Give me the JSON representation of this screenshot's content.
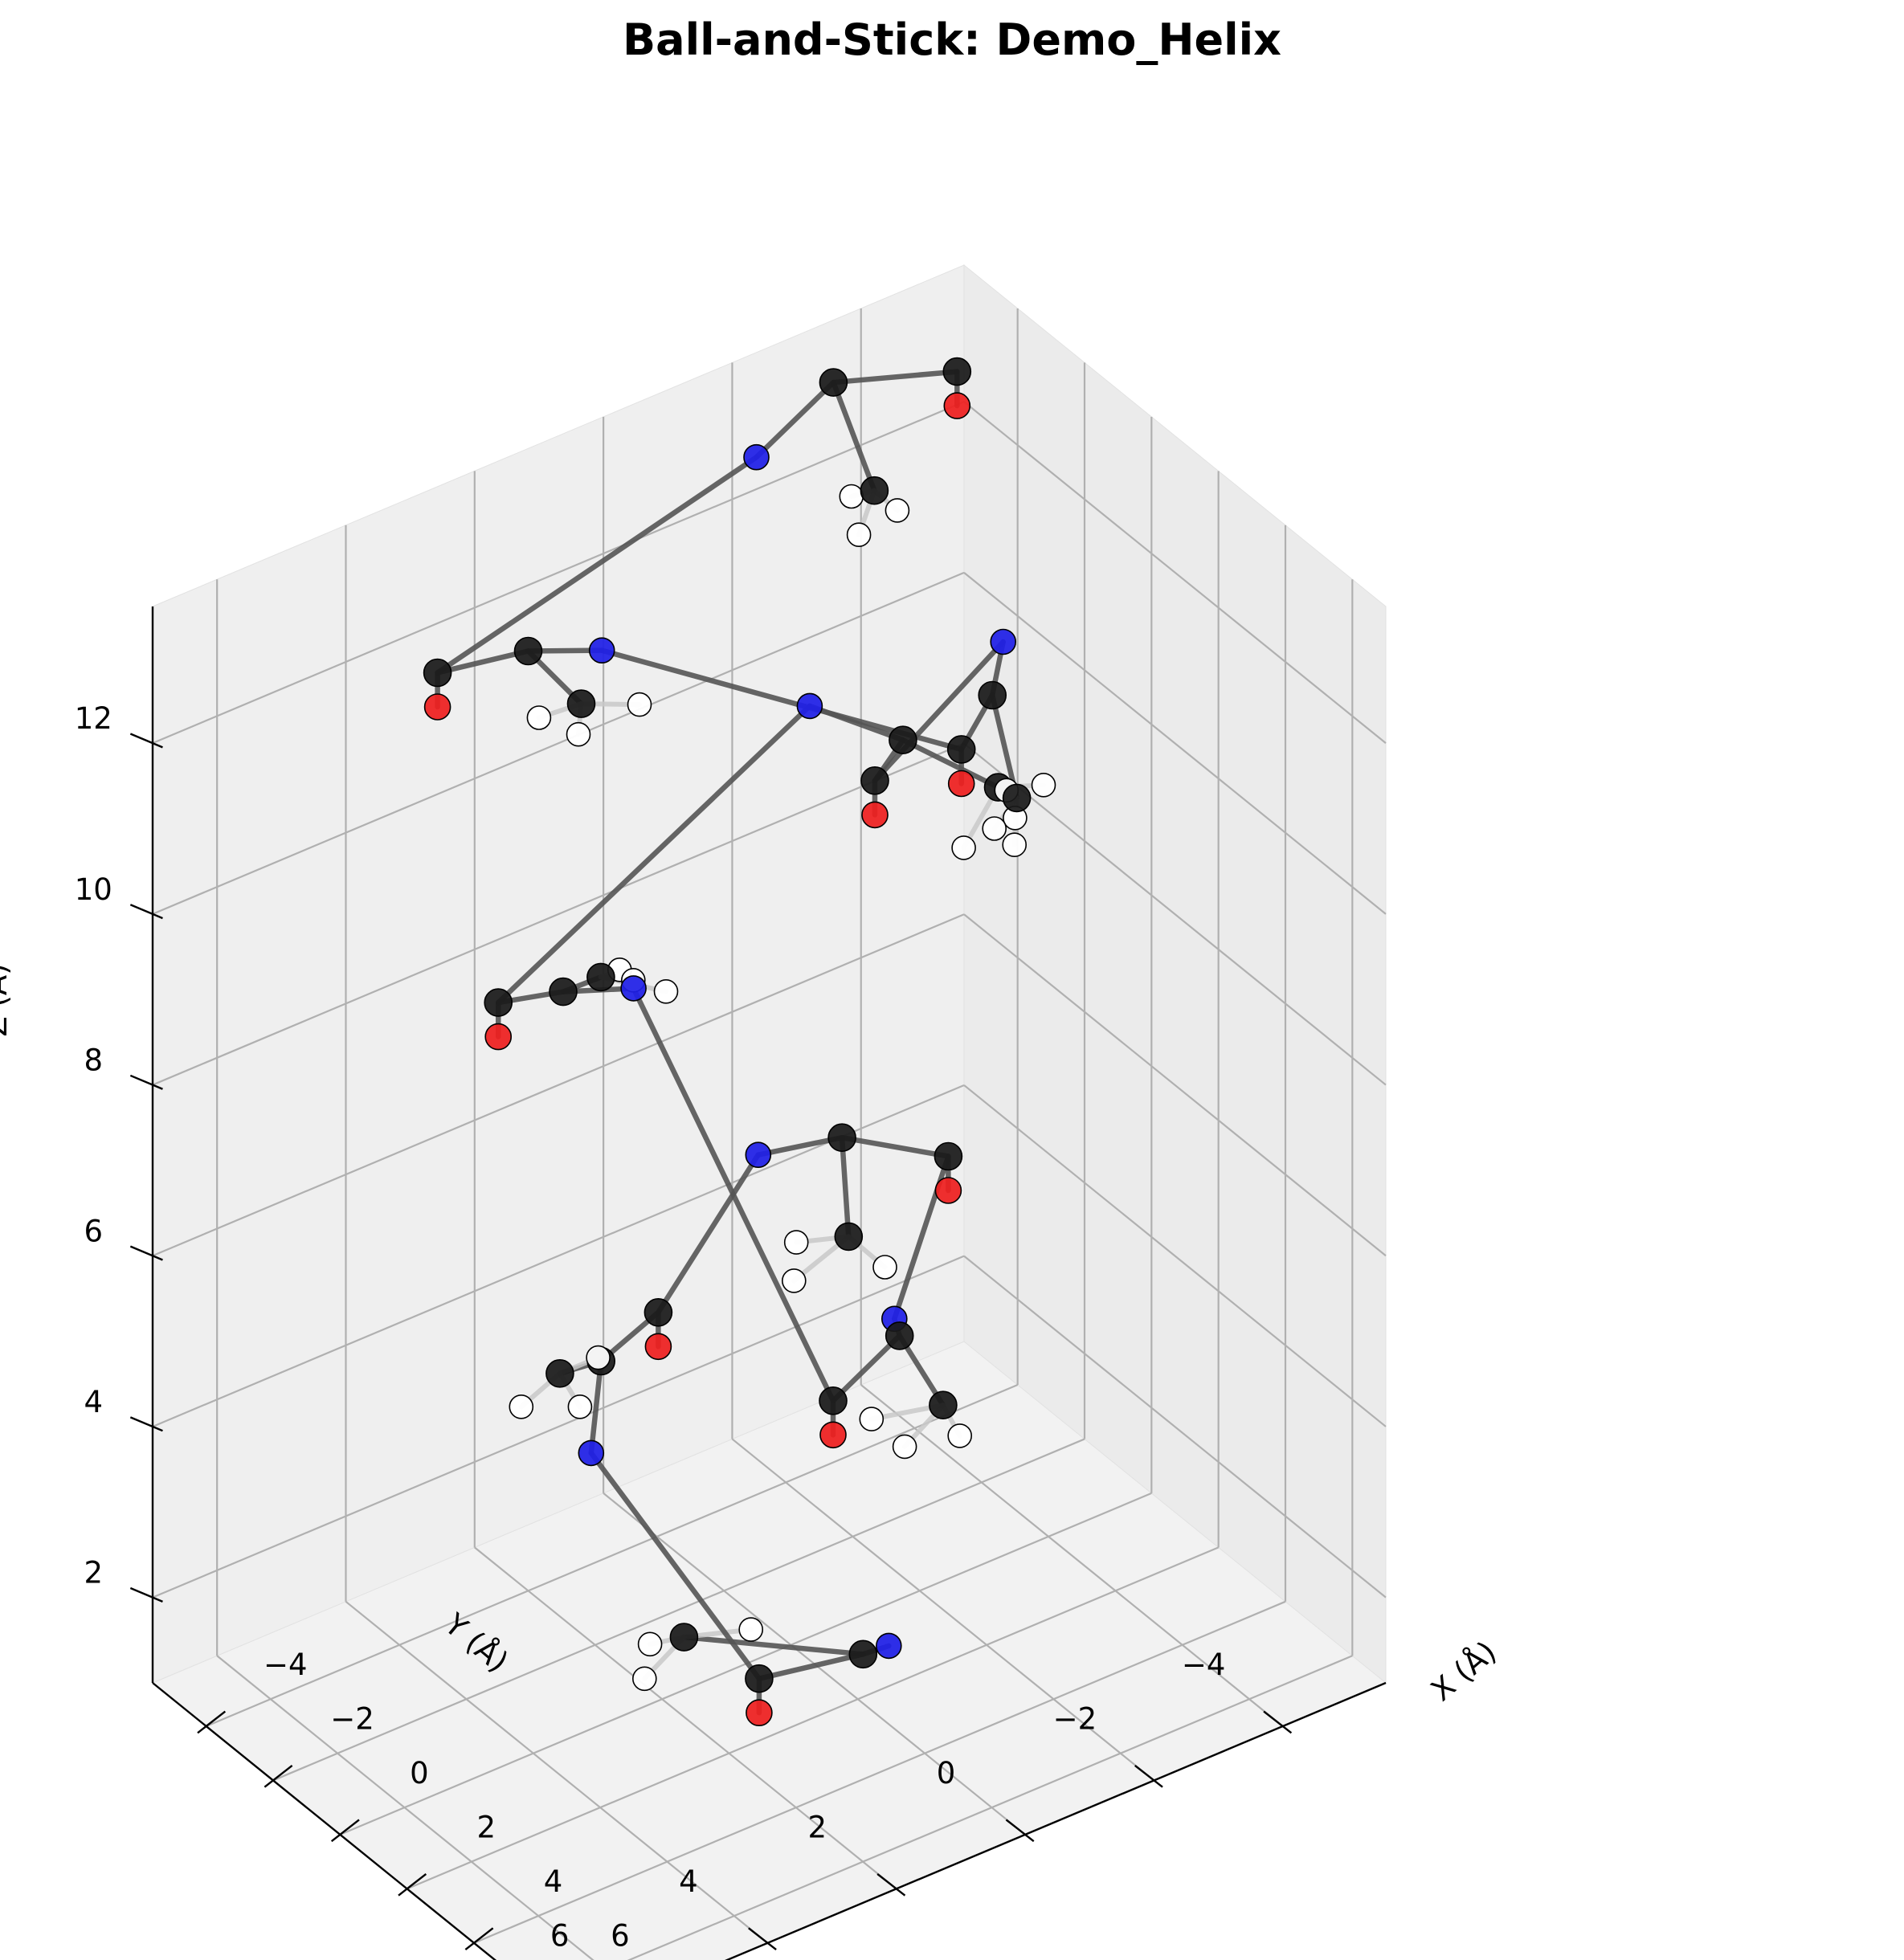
{
  "chart_data": {
    "type": "scatter",
    "subtype": "3d-ball-and-stick",
    "title": "Ball-and-Stick: Demo_Helix",
    "xlabel": "X (Å)",
    "ylabel": "Y (Å)",
    "zlabel": "Z (Å)",
    "xlim": [
      -5.6,
      7.0
    ],
    "ylim": [
      -5.6,
      7.0
    ],
    "zlim": [
      1.0,
      13.6
    ],
    "x_ticks": [
      "−4",
      "−2",
      "0",
      "2",
      "4",
      "6"
    ],
    "y_ticks": [
      "−4",
      "−2",
      "0",
      "2",
      "4",
      "6"
    ],
    "z_ticks": [
      "2",
      "4",
      "6",
      "8",
      "10",
      "12"
    ],
    "grid": true,
    "legend": "none",
    "element_colors": {
      "C": "#1a1a1a",
      "N": "#1f1fe6",
      "O": "#ee1f1f",
      "H": "#ffffff"
    },
    "bond_color": "#555555",
    "atoms": [
      {
        "el": "N",
        "x": 2.06,
        "y": -0.45,
        "z": 1.5
      },
      {
        "el": "C",
        "x": 2.83,
        "y": 0.35,
        "z": 1.9
      },
      {
        "el": "C",
        "x": 2.36,
        "y": 1.72,
        "z": 1.9
      },
      {
        "el": "O",
        "x": 2.36,
        "y": 1.72,
        "z": 1.5
      },
      {
        "el": "C",
        "x": 1.0,
        "y": 2.18,
        "z": 2.1
      },
      {
        "el": "H",
        "x": 0.41,
        "y": 2.4,
        "z": 1.9
      },
      {
        "el": "H",
        "x": 1.4,
        "y": 3.0,
        "z": 2.0
      },
      {
        "el": "H",
        "x": 1.5,
        "y": 1.4,
        "z": 2.1
      },
      {
        "el": "N",
        "x": -1.1,
        "y": 2.53,
        "z": 3.7
      },
      {
        "el": "C",
        "x": -2.4,
        "y": 1.7,
        "z": 4.1
      },
      {
        "el": "C",
        "x": -3.0,
        "y": 0.5,
        "z": 4.1
      },
      {
        "el": "O",
        "x": -3.0,
        "y": 0.5,
        "z": 3.7
      },
      {
        "el": "C",
        "x": -1.9,
        "y": 2.6,
        "z": 4.4
      },
      {
        "el": "H",
        "x": -1.9,
        "y": 3.2,
        "z": 4.2
      },
      {
        "el": "H",
        "x": -1.3,
        "y": 2.6,
        "z": 4.2
      },
      {
        "el": "H",
        "x": -2.1,
        "y": 1.9,
        "z": 4.3
      },
      {
        "el": "N",
        "x": -2.9,
        "y": -1.0,
        "z": 5.5
      },
      {
        "el": "C",
        "x": -1.84,
        "y": -1.75,
        "z": 5.8
      },
      {
        "el": "C",
        "x": -0.3,
        "y": -2.6,
        "z": 5.8
      },
      {
        "el": "O",
        "x": -0.3,
        "y": -2.6,
        "z": 5.4
      },
      {
        "el": "C",
        "x": -0.2,
        "y": -1.0,
        "z": 5.4
      },
      {
        "el": "H",
        "x": 0.5,
        "y": -1.2,
        "z": 5.2
      },
      {
        "el": "H",
        "x": -0.1,
        "y": -0.1,
        "z": 5.2
      },
      {
        "el": "H",
        "x": -0.8,
        "y": -0.5,
        "z": 5.3
      },
      {
        "el": "N",
        "x": 0.4,
        "y": -1.4,
        "z": 4.5
      },
      {
        "el": "C",
        "x": 1.9,
        "y": -0.7,
        "z": 5.0
      },
      {
        "el": "C",
        "x": 2.8,
        "y": 0.8,
        "z": 5.0
      },
      {
        "el": "O",
        "x": 2.8,
        "y": 0.8,
        "z": 4.6
      },
      {
        "el": "C",
        "x": 3.2,
        "y": -0.7,
        "z": 4.6
      },
      {
        "el": "H",
        "x": 3.7,
        "y": -0.7,
        "z": 4.4
      },
      {
        "el": "H",
        "x": 3.4,
        "y": 0.0,
        "z": 4.4
      },
      {
        "el": "H",
        "x": 2.6,
        "y": 0.1,
        "z": 4.5
      },
      {
        "el": "N",
        "x": -2.2,
        "y": 1.3,
        "z": 8.4
      },
      {
        "el": "C",
        "x": -1.8,
        "y": 2.6,
        "z": 8.9
      },
      {
        "el": "C",
        "x": -2.2,
        "y": 3.4,
        "z": 8.9
      },
      {
        "el": "O",
        "x": -2.2,
        "y": 3.4,
        "z": 8.5
      },
      {
        "el": "C",
        "x": -2.6,
        "y": 1.6,
        "z": 8.5
      },
      {
        "el": "H",
        "x": -2.0,
        "y": 0.9,
        "z": 8.3
      },
      {
        "el": "H",
        "x": -2.4,
        "y": 1.2,
        "z": 8.4
      },
      {
        "el": "H",
        "x": -3.0,
        "y": 1.1,
        "z": 8.3
      },
      {
        "el": "N",
        "x": -2.9,
        "y": -1.8,
        "z": 10.5
      },
      {
        "el": "C",
        "x": -0.5,
        "y": -2.0,
        "z": 10.8
      },
      {
        "el": "C",
        "x": 0.2,
        "y": -1.2,
        "z": 10.8
      },
      {
        "el": "O",
        "x": 0.2,
        "y": -1.2,
        "z": 10.4
      },
      {
        "el": "C",
        "x": 1.0,
        "y": -2.7,
        "z": 10.5
      },
      {
        "el": "H",
        "x": 1.7,
        "y": -1.8,
        "z": 10.3
      },
      {
        "el": "H",
        "x": 1.5,
        "y": -2.7,
        "z": 10.3
      },
      {
        "el": "H",
        "x": 1.2,
        "y": -3.3,
        "z": 10.4
      },
      {
        "el": "N",
        "x": -0.2,
        "y": -3.4,
        "z": 11.6
      },
      {
        "el": "C",
        "x": 1.4,
        "y": -2.4,
        "z": 11.8
      },
      {
        "el": "C",
        "x": 2.4,
        "y": -1.4,
        "z": 11.8
      },
      {
        "el": "O",
        "x": 2.4,
        "y": -1.4,
        "z": 11.4
      },
      {
        "el": "C",
        "x": 2.9,
        "y": -2.0,
        "z": 11.2
      },
      {
        "el": "H",
        "x": 3.6,
        "y": -1.6,
        "z": 11.0
      },
      {
        "el": "H",
        "x": 3.0,
        "y": -1.6,
        "z": 11.0
      },
      {
        "el": "H",
        "x": 2.4,
        "y": -2.1,
        "z": 11.1
      },
      {
        "el": "N",
        "x": -4.3,
        "y": 0.7,
        "z": 11.5
      },
      {
        "el": "C",
        "x": -4.0,
        "y": 2.0,
        "z": 12.0
      },
      {
        "el": "C",
        "x": -4.4,
        "y": 3.2,
        "z": 12.0
      },
      {
        "el": "O",
        "x": -4.4,
        "y": 3.2,
        "z": 11.6
      },
      {
        "el": "C",
        "x": -2.8,
        "y": 1.8,
        "z": 11.7
      },
      {
        "el": "H",
        "x": -2.6,
        "y": 1.0,
        "z": 11.5
      },
      {
        "el": "H",
        "x": -2.5,
        "y": 2.0,
        "z": 11.5
      },
      {
        "el": "H",
        "x": -3.1,
        "y": 2.3,
        "z": 11.6
      },
      {
        "el": "N",
        "x": -4.3,
        "y": -1.7,
        "z": 13.0
      },
      {
        "el": "C",
        "x": -4.5,
        "y": -3.0,
        "z": 13.4
      },
      {
        "el": "C",
        "x": -3.5,
        "y": -4.4,
        "z": 13.4
      },
      {
        "el": "O",
        "x": -3.5,
        "y": -4.4,
        "z": 13.0
      },
      {
        "el": "C",
        "x": -2.7,
        "y": -2.7,
        "z": 12.8
      },
      {
        "el": "H",
        "x": -2.2,
        "y": -2.2,
        "z": 12.6
      },
      {
        "el": "H",
        "x": -2.4,
        "y": -2.9,
        "z": 12.6
      },
      {
        "el": "H",
        "x": -3.0,
        "y": -2.5,
        "z": 12.7
      }
    ],
    "bonds": [
      [
        0,
        1
      ],
      [
        1,
        2
      ],
      [
        2,
        3
      ],
      [
        1,
        4
      ],
      [
        4,
        5
      ],
      [
        4,
        6
      ],
      [
        4,
        7
      ],
      [
        2,
        8
      ],
      [
        8,
        9
      ],
      [
        9,
        10
      ],
      [
        10,
        11
      ],
      [
        9,
        12
      ],
      [
        12,
        13
      ],
      [
        12,
        14
      ],
      [
        12,
        15
      ],
      [
        10,
        16
      ],
      [
        16,
        17
      ],
      [
        17,
        18
      ],
      [
        18,
        19
      ],
      [
        17,
        20
      ],
      [
        20,
        21
      ],
      [
        20,
        22
      ],
      [
        20,
        23
      ],
      [
        18,
        24
      ],
      [
        24,
        25
      ],
      [
        25,
        26
      ],
      [
        26,
        27
      ],
      [
        25,
        28
      ],
      [
        28,
        29
      ],
      [
        28,
        30
      ],
      [
        28,
        31
      ],
      [
        26,
        32
      ],
      [
        32,
        33
      ],
      [
        33,
        34
      ],
      [
        34,
        35
      ],
      [
        33,
        36
      ],
      [
        36,
        37
      ],
      [
        36,
        38
      ],
      [
        36,
        39
      ],
      [
        34,
        40
      ],
      [
        40,
        41
      ],
      [
        41,
        42
      ],
      [
        42,
        43
      ],
      [
        41,
        44
      ],
      [
        44,
        45
      ],
      [
        44,
        46
      ],
      [
        44,
        47
      ],
      [
        42,
        48
      ],
      [
        48,
        49
      ],
      [
        49,
        50
      ],
      [
        50,
        51
      ],
      [
        49,
        52
      ],
      [
        52,
        53
      ],
      [
        52,
        54
      ],
      [
        52,
        55
      ],
      [
        50,
        56
      ],
      [
        56,
        57
      ],
      [
        57,
        58
      ],
      [
        58,
        59
      ],
      [
        57,
        60
      ],
      [
        60,
        61
      ],
      [
        60,
        62
      ],
      [
        60,
        63
      ],
      [
        58,
        64
      ],
      [
        64,
        65
      ],
      [
        65,
        66
      ],
      [
        66,
        67
      ],
      [
        65,
        68
      ],
      [
        68,
        69
      ],
      [
        68,
        70
      ],
      [
        68,
        71
      ]
    ]
  }
}
